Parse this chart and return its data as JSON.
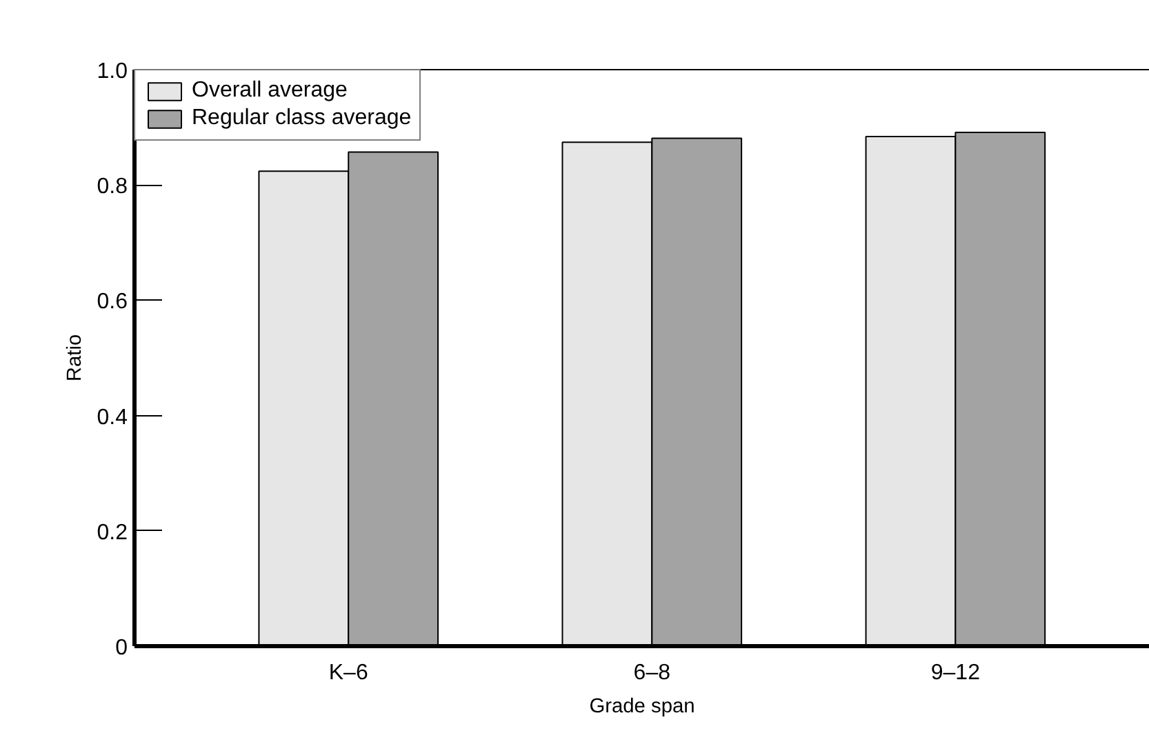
{
  "chart_data": {
    "type": "bar",
    "xlabel": "Grade span",
    "ylabel": "Ratio",
    "categories": [
      "K–6",
      "6–8",
      "9–12"
    ],
    "series": [
      {
        "name": "Overall average",
        "color": "#e6e6e6",
        "values": [
          0.824,
          0.874,
          0.884
        ]
      },
      {
        "name": "Regular class average",
        "color": "#a3a3a3",
        "values": [
          0.857,
          0.881,
          0.891
        ]
      }
    ],
    "ylim": [
      0,
      1.0
    ],
    "yticks": [
      0,
      0.2,
      0.4,
      0.6,
      0.8,
      {
        "value": 1,
        "label": "1.0"
      }
    ],
    "grid": false,
    "legend": "top left"
  }
}
